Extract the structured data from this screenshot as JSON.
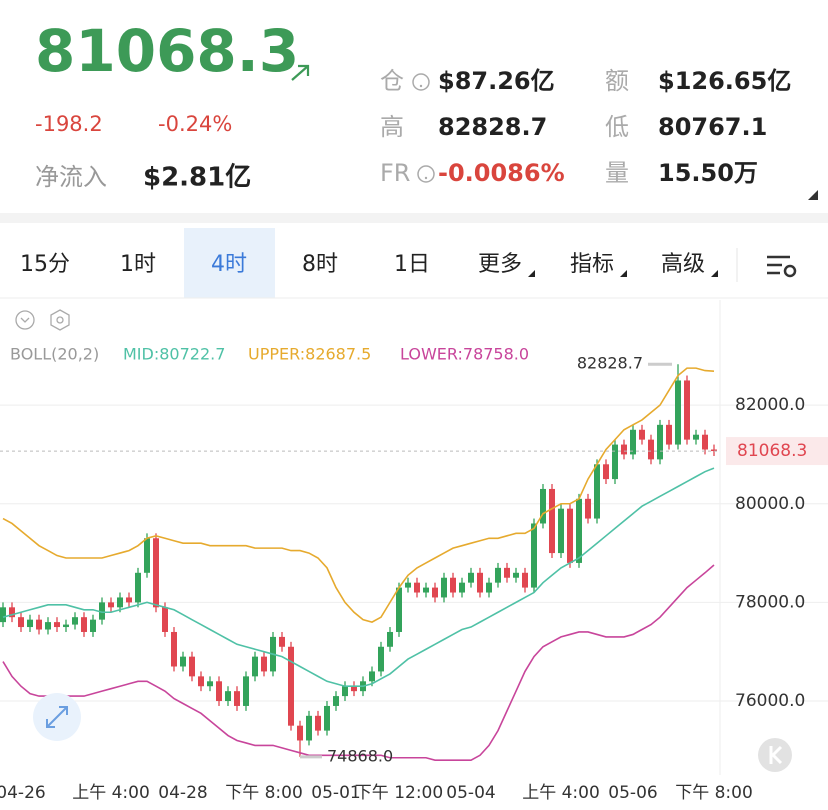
{
  "header": {
    "price": "81068.3",
    "change": "-198.2",
    "change_pct": "-0.24%",
    "net_inflow_label": "净流入",
    "net_inflow": "$2.81亿",
    "stats": [
      {
        "label": "仓",
        "value": "$87.26亿"
      },
      {
        "label": "额",
        "value": "$126.65亿"
      },
      {
        "label": "高",
        "value": "82828.7"
      },
      {
        "label": "低",
        "value": "80767.1"
      },
      {
        "label": "FR",
        "value": "-0.0086%"
      },
      {
        "label": "量",
        "value": "15.50万"
      }
    ]
  },
  "tabs": [
    "15分",
    "1时",
    "4时",
    "8时",
    "1日",
    "更多",
    "指标",
    "高级"
  ],
  "selected_tab": 2,
  "chart_data": {
    "type": "candlestick",
    "indicator": "BOLL(20,2)",
    "categories": [
      null,
      null,
      "04-26",
      null,
      null,
      null,
      null,
      null,
      null,
      null,
      null,
      null,
      "上午 4:00",
      null,
      null,
      null,
      null,
      null,
      null,
      null,
      "04-28",
      null,
      null,
      null,
      null,
      null,
      null,
      null,
      null,
      "下午 8:00",
      null,
      null,
      null,
      null,
      null,
      null,
      null,
      "05-01",
      null,
      null,
      null,
      null,
      null,
      null,
      "下午 12:00",
      null,
      null,
      null,
      null,
      null,
      null,
      null,
      "05-04",
      null,
      null,
      null,
      null,
      null,
      null,
      null,
      null,
      null,
      "上午 4:00",
      null,
      null,
      null,
      null,
      null,
      null,
      null,
      "05-06",
      null,
      null,
      null,
      null,
      null,
      null,
      null,
      null,
      "下午 8:00"
    ],
    "open": [
      77600,
      77900,
      77700,
      77500,
      77650,
      77450,
      77600,
      77500,
      77550,
      77700,
      77400,
      77650,
      78000,
      77900,
      78100,
      78000,
      78600,
      79300,
      77900,
      77400,
      76700,
      76900,
      76500,
      76300,
      76400,
      76000,
      76200,
      75900,
      76500,
      76900,
      76600,
      77300,
      77100,
      75500,
      75200,
      75700,
      75400,
      75900,
      76100,
      76300,
      76200,
      76400,
      76600,
      77100,
      77400,
      78300,
      78400,
      78200,
      78300,
      78100,
      78500,
      78200,
      78400,
      78600,
      78200,
      78400,
      78700,
      78500,
      78600,
      78300,
      79600,
      80300,
      79000,
      79900,
      78800,
      80100,
      79700,
      80800,
      80500,
      81200,
      81000,
      81500,
      81300,
      80900,
      81600,
      81200,
      82500,
      81300,
      81400,
      81100
    ],
    "high": [
      78000,
      78000,
      77800,
      77750,
      77750,
      77700,
      77700,
      77650,
      77800,
      77800,
      77750,
      78100,
      78100,
      78200,
      78200,
      78700,
      79400,
      79400,
      78000,
      77500,
      77000,
      77000,
      76600,
      76500,
      76500,
      76300,
      76300,
      76600,
      77000,
      77000,
      77400,
      77400,
      77200,
      75600,
      75800,
      75800,
      76000,
      76200,
      76400,
      76400,
      76500,
      76700,
      77200,
      77500,
      78400,
      78500,
      78500,
      78400,
      78400,
      78600,
      78600,
      78500,
      78700,
      78700,
      78500,
      78800,
      78800,
      78700,
      78700,
      79700,
      80400,
      80400,
      80000,
      80000,
      80200,
      80200,
      80900,
      80900,
      81300,
      81300,
      81600,
      81600,
      81400,
      81700,
      81700,
      82828.7,
      82600,
      81500,
      81500,
      81200
    ],
    "low": [
      77500,
      77600,
      77400,
      77400,
      77350,
      77350,
      77400,
      77400,
      77450,
      77300,
      77300,
      77550,
      77800,
      77800,
      77900,
      77900,
      78500,
      77800,
      77300,
      76600,
      76600,
      76400,
      76200,
      76200,
      75900,
      75900,
      75800,
      75800,
      76400,
      76500,
      76500,
      77000,
      75400,
      74868,
      75100,
      75300,
      75300,
      75800,
      76000,
      76100,
      76100,
      76300,
      76500,
      77000,
      77300,
      78200,
      78100,
      78100,
      78000,
      78000,
      78100,
      78100,
      78300,
      78100,
      78100,
      78300,
      78400,
      78400,
      78200,
      78200,
      79500,
      78900,
      78900,
      78700,
      78700,
      79600,
      79600,
      80400,
      80400,
      80900,
      80900,
      81200,
      80800,
      80800,
      81100,
      81100,
      81200,
      81200,
      81000,
      80968.3
    ],
    "close": [
      77900,
      77700,
      77500,
      77650,
      77450,
      77600,
      77500,
      77550,
      77700,
      77400,
      77650,
      78000,
      77900,
      78100,
      78000,
      78600,
      79300,
      77900,
      77400,
      76700,
      76900,
      76500,
      76300,
      76400,
      76000,
      76200,
      75900,
      76500,
      76900,
      76600,
      77300,
      77100,
      75500,
      75200,
      75700,
      75400,
      75900,
      76100,
      76300,
      76200,
      76400,
      76600,
      77100,
      77400,
      78300,
      78400,
      78200,
      78300,
      78100,
      78500,
      78200,
      78400,
      78600,
      78200,
      78400,
      78700,
      78500,
      78600,
      78300,
      79600,
      80300,
      79000,
      79900,
      78800,
      80100,
      79700,
      80800,
      80500,
      81200,
      81000,
      81500,
      81300,
      80900,
      81600,
      81200,
      82500,
      81300,
      81400,
      81100,
      81068.3
    ],
    "up_color": "#33a35b",
    "down_color": "#e04650",
    "series": [
      {
        "name": "MID:80722.7",
        "color": "#4fc1a6",
        "values": [
          77700,
          77750,
          77800,
          77850,
          77900,
          77950,
          77950,
          77950,
          77900,
          77850,
          77850,
          77800,
          77800,
          77850,
          77900,
          77950,
          78000,
          77950,
          77900,
          77850,
          77750,
          77650,
          77550,
          77450,
          77350,
          77250,
          77150,
          77100,
          77050,
          77000,
          76950,
          76900,
          76800,
          76700,
          76600,
          76500,
          76400,
          76350,
          76300,
          76300,
          76300,
          76350,
          76450,
          76550,
          76700,
          76850,
          76950,
          77050,
          77150,
          77250,
          77350,
          77450,
          77500,
          77600,
          77700,
          77800,
          77900,
          78000,
          78100,
          78200,
          78400,
          78550,
          78700,
          78800,
          78900,
          79050,
          79200,
          79350,
          79500,
          79650,
          79800,
          79950,
          80050,
          80150,
          80250,
          80350,
          80450,
          80550,
          80650,
          80722.7
        ]
      },
      {
        "name": "UPPER:82687.5",
        "color": "#e6aa2e",
        "values": [
          79700,
          79600,
          79450,
          79300,
          79150,
          79050,
          78950,
          78900,
          78900,
          78900,
          78900,
          78900,
          78950,
          79000,
          79050,
          79150,
          79300,
          79350,
          79300,
          79250,
          79200,
          79200,
          79200,
          79150,
          79150,
          79150,
          79150,
          79150,
          79100,
          79100,
          79100,
          79100,
          79050,
          79050,
          79000,
          78900,
          78700,
          78300,
          78000,
          77800,
          77650,
          77600,
          77700,
          78000,
          78300,
          78550,
          78700,
          78800,
          78900,
          79000,
          79100,
          79150,
          79200,
          79250,
          79300,
          79300,
          79350,
          79400,
          79400,
          79500,
          79800,
          79900,
          80000,
          80000,
          80100,
          80500,
          80800,
          81100,
          81300,
          81500,
          81600,
          81700,
          81850,
          82000,
          82300,
          82600,
          82750,
          82750,
          82700,
          82687.5
        ]
      },
      {
        "name": "LOWER:78758.0",
        "color": "#c8459b",
        "values": [
          76800,
          76500,
          76300,
          76150,
          76100,
          76100,
          76100,
          76100,
          76100,
          76100,
          76150,
          76200,
          76250,
          76300,
          76350,
          76400,
          76400,
          76300,
          76200,
          76050,
          75950,
          75850,
          75750,
          75600,
          75450,
          75300,
          75200,
          75150,
          75100,
          75100,
          75100,
          75050,
          75000,
          74950,
          74900,
          74900,
          74900,
          74900,
          74900,
          74900,
          74900,
          74900,
          74900,
          74850,
          74850,
          74850,
          74850,
          74850,
          74800,
          74800,
          74800,
          74800,
          74800,
          74900,
          75100,
          75400,
          75800,
          76200,
          76600,
          76900,
          77100,
          77200,
          77300,
          77350,
          77400,
          77400,
          77350,
          77300,
          77300,
          77300,
          77350,
          77450,
          77550,
          77700,
          77900,
          78100,
          78300,
          78450,
          78600,
          78758
        ]
      }
    ],
    "indicator_color": "#999999",
    "ylim": [
      74500,
      83300
    ],
    "yticks": [
      {
        "value": 76000,
        "label": "76000.0"
      },
      {
        "value": 78000,
        "label": "78000.0"
      },
      {
        "value": 80000,
        "label": "80000.0"
      },
      {
        "value": 82000,
        "label": "82000.0"
      }
    ],
    "grid": true,
    "last_price": 81068.3,
    "high_marker": 82828.7,
    "low_marker": {
      "value": 74868,
      "label": "74868.0"
    }
  }
}
